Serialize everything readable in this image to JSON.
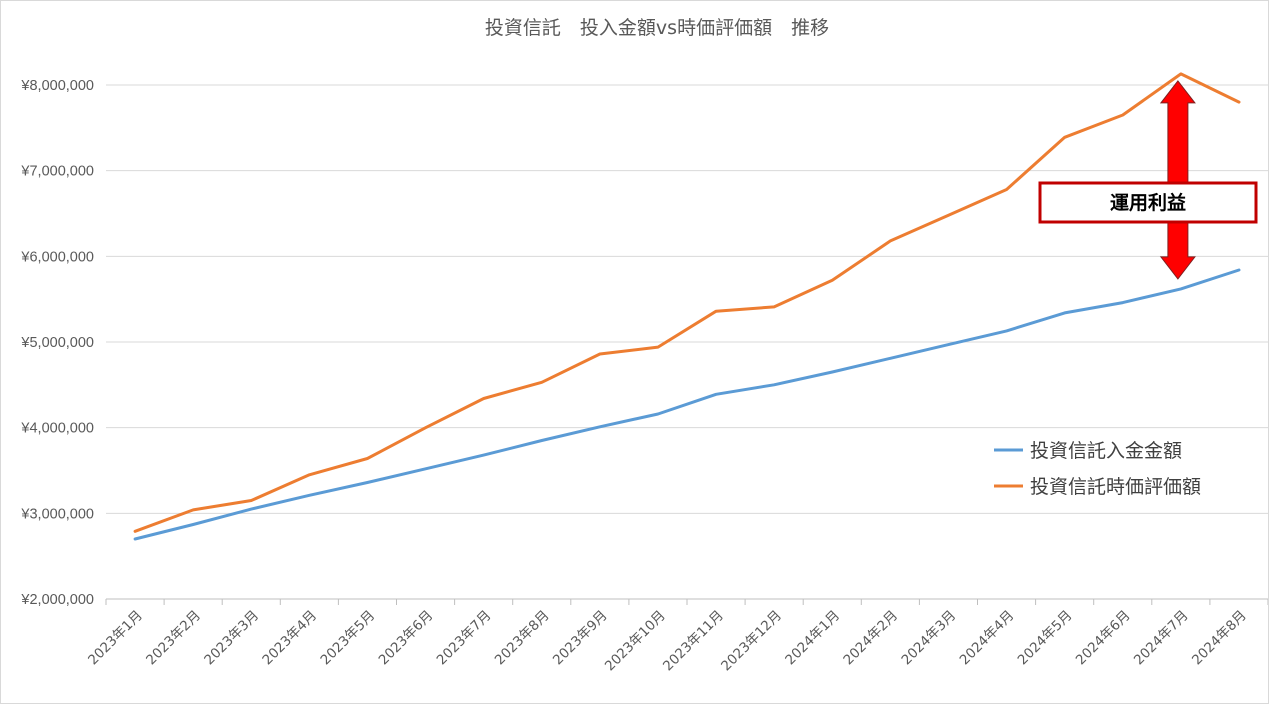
{
  "chart_data": {
    "type": "line",
    "title": "投資信託　投入金額vs時価評価額　推移",
    "xlabel": "",
    "ylabel": "",
    "categories": [
      "2023年1月",
      "2023年2月",
      "2023年3月",
      "2023年4月",
      "2023年5月",
      "2023年6月",
      "2023年7月",
      "2023年8月",
      "2023年9月",
      "2023年10月",
      "2023年11月",
      "2023年12月",
      "2024年1月",
      "2024年2月",
      "2024年3月",
      "2024年4月",
      "2024年5月",
      "2024年6月",
      "2024年7月",
      "2024年8月"
    ],
    "ylim": [
      2000000,
      8000000
    ],
    "yticks": [
      "¥2,000,000",
      "¥3,000,000",
      "¥4,000,000",
      "¥5,000,000",
      "¥6,000,000",
      "¥7,000,000",
      "¥8,000,000"
    ],
    "ytick_values": [
      2000000,
      3000000,
      4000000,
      5000000,
      6000000,
      7000000,
      8000000
    ],
    "grid": true,
    "legend_position": "right",
    "series": [
      {
        "name": "投資信託入金金額",
        "color": "#5b9bd5",
        "values": [
          2700000,
          2870000,
          3050000,
          3210000,
          3360000,
          3520000,
          3680000,
          3850000,
          4010000,
          4160000,
          4390000,
          4500000,
          4650000,
          4810000,
          4970000,
          5130000,
          5340000,
          5460000,
          5620000,
          5840000
        ]
      },
      {
        "name": "投資信託時価評価額",
        "color": "#ed7d31",
        "values": [
          2790000,
          3040000,
          3150000,
          3450000,
          3640000,
          4000000,
          4340000,
          4530000,
          4860000,
          4940000,
          5360000,
          5410000,
          5720000,
          6180000,
          6480000,
          6780000,
          7390000,
          7650000,
          8130000,
          7800000
        ]
      }
    ],
    "annotation": {
      "label": "運用利益",
      "arrow_color": "#ff0000",
      "box_border_color": "#c00000",
      "from_value": 5620000,
      "to_value": 8130000,
      "at_category": "2024年7月"
    }
  }
}
